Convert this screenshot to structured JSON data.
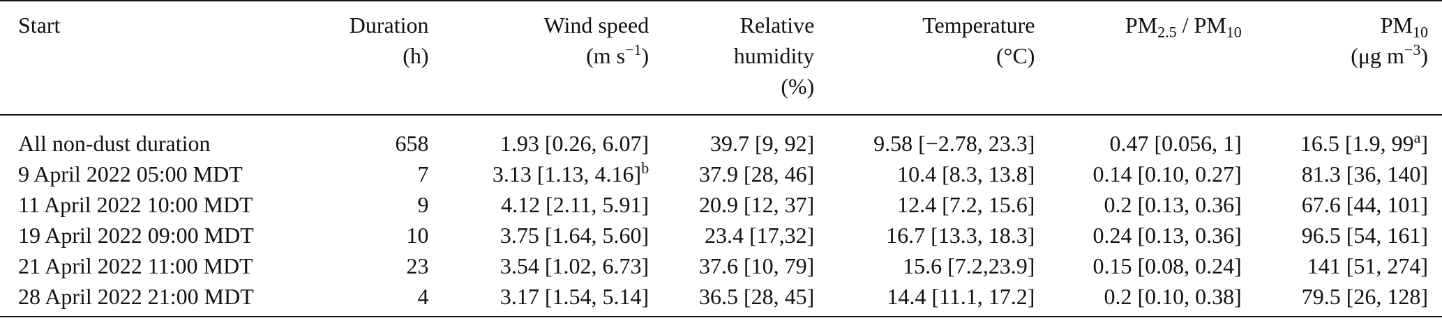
{
  "table": {
    "headers": {
      "start": "Start",
      "duration": [
        "Duration",
        "(h)"
      ],
      "wind": [
        "Wind speed",
        "(m s",
        "−1",
        ")"
      ],
      "rh": [
        "Relative",
        "humidity",
        "(%)"
      ],
      "temp": [
        "Temperature",
        "(°C)"
      ],
      "ratio": [
        "PM",
        "2.5",
        " / PM",
        "10"
      ],
      "pm10": [
        "PM",
        "10",
        "(μg m",
        "−3",
        ")"
      ]
    },
    "rows": [
      {
        "start": "All non-dust duration",
        "duration": "658",
        "wind": "1.93 [0.26, 6.07]",
        "wind_sup": "",
        "rh": "39.7 [9, 92]",
        "temp": "9.58 [−2.78, 23.3]",
        "ratio": "0.47 [0.056, 1]",
        "pm10_pre": "16.5 [1.9, 99",
        "pm10_sup": "a",
        "pm10_post": "]"
      },
      {
        "start": "9 April 2022 05:00 MDT",
        "duration": "7",
        "wind": "3.13 [1.13, 4.16]",
        "wind_sup": "b",
        "rh": "37.9 [28, 46]",
        "temp": "10.4 [8.3, 13.8]",
        "ratio": "0.14 [0.10, 0.27]",
        "pm10_pre": "81.3 [36, 140]",
        "pm10_sup": "",
        "pm10_post": ""
      },
      {
        "start": "11 April 2022 10:00 MDT",
        "duration": "9",
        "wind": "4.12 [2.11, 5.91]",
        "wind_sup": "",
        "rh": "20.9 [12, 37]",
        "temp": "12.4 [7.2, 15.6]",
        "ratio": "0.2 [0.13, 0.36]",
        "pm10_pre": "67.6 [44, 101]",
        "pm10_sup": "",
        "pm10_post": ""
      },
      {
        "start": "19 April 2022 09:00 MDT",
        "duration": "10",
        "wind": "3.75 [1.64, 5.60]",
        "wind_sup": "",
        "rh": "23.4 [17,32]",
        "temp": "16.7 [13.3, 18.3]",
        "ratio": "0.24 [0.13, 0.36]",
        "pm10_pre": "96.5 [54, 161]",
        "pm10_sup": "",
        "pm10_post": ""
      },
      {
        "start": "21 April 2022 11:00 MDT",
        "duration": "23",
        "wind": "3.54 [1.02, 6.73]",
        "wind_sup": "",
        "rh": "37.6 [10, 79]",
        "temp": "15.6 [7.2,23.9]",
        "ratio": "0.15 [0.08, 0.24]",
        "pm10_pre": "141 [51, 274]",
        "pm10_sup": "",
        "pm10_post": ""
      },
      {
        "start": "28 April 2022 21:00 MDT",
        "duration": "4",
        "wind": "3.17 [1.54, 5.14]",
        "wind_sup": "",
        "rh": "36.5 [28, 45]",
        "temp": "14.4 [11.1, 17.2]",
        "ratio": "0.2 [0.10, 0.38]",
        "pm10_pre": "79.5 [26, 128]",
        "pm10_sup": "",
        "pm10_post": ""
      }
    ]
  }
}
